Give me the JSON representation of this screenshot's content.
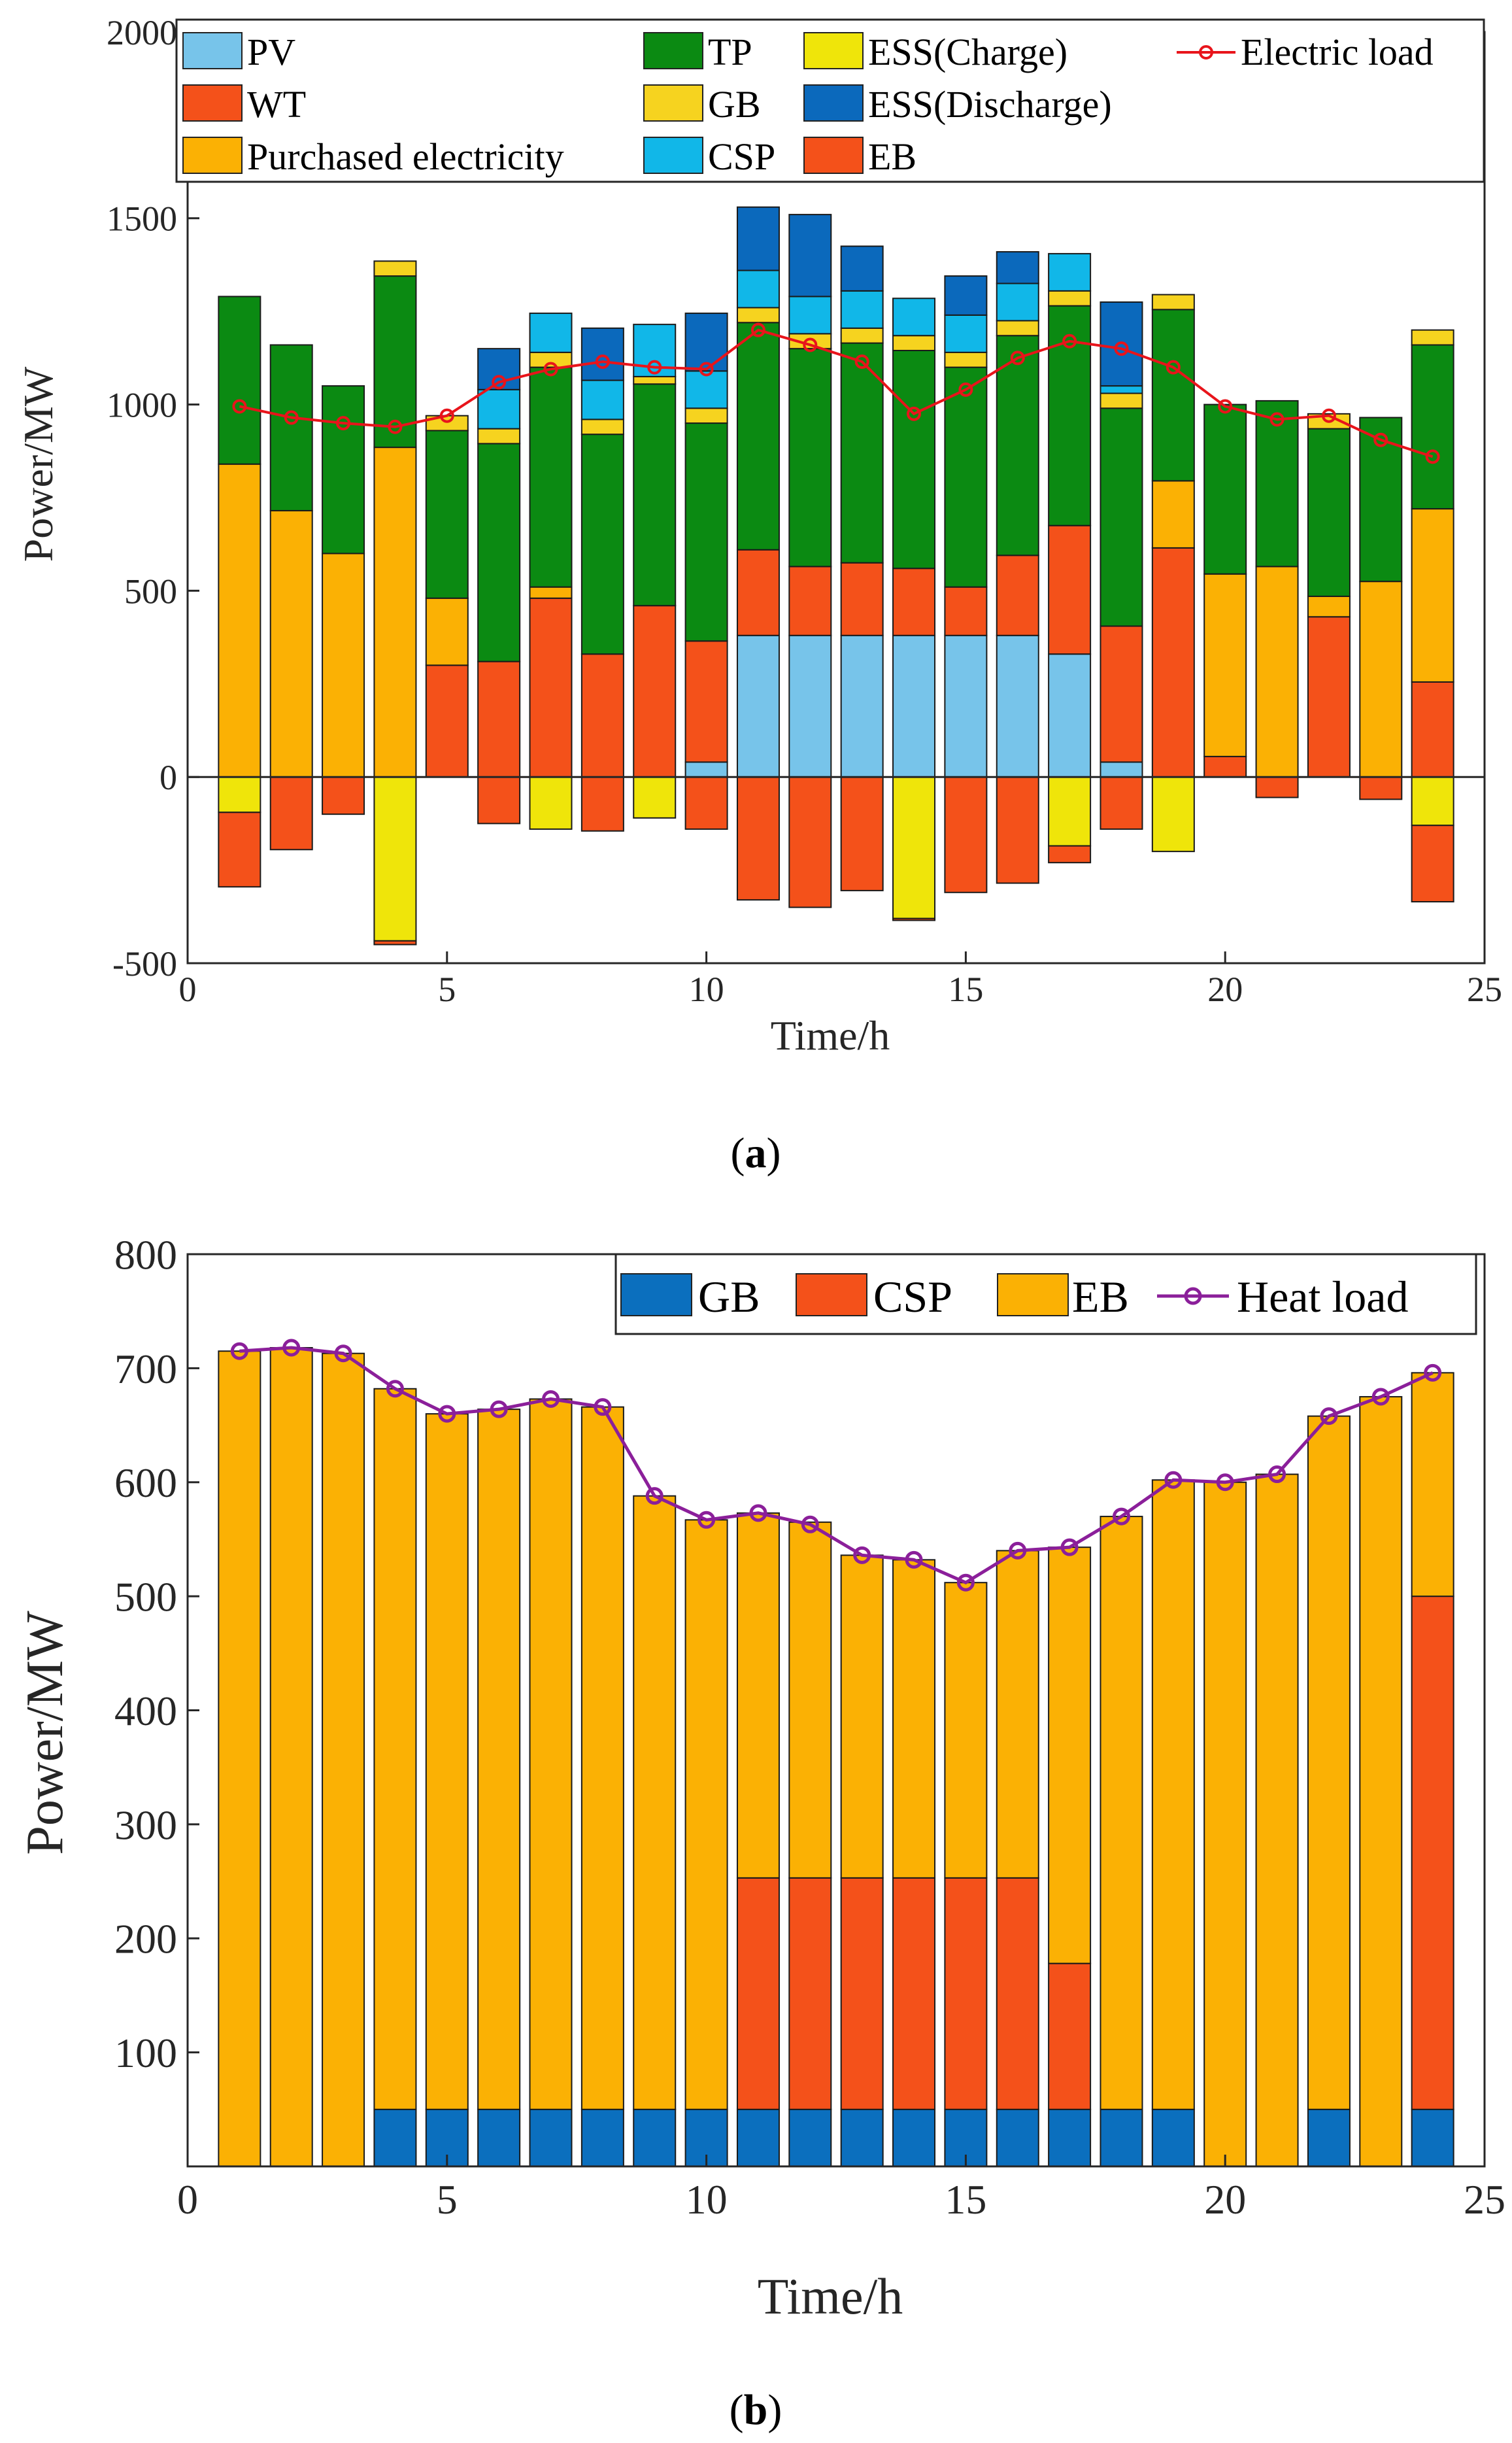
{
  "colors": {
    "PV": "#77c4ea",
    "WT": "#f4511a",
    "Purchased electricity": "#fbb104",
    "TP": "#0b8a12",
    "GB": "#f6d31f",
    "CSP": "#11b7e8",
    "ESS(Charge)": "#efe50a",
    "ESS(Discharge)": "#0b69bc",
    "EB": "#f4511a",
    "Electric load": "#e8141b",
    "GB_b": "#0b6fbe",
    "CSP_b": "#f4511a",
    "EB_b": "#fbb104",
    "Heat load": "#8b1f9a"
  },
  "chart_data": [
    {
      "type": "bar",
      "stacked": true,
      "title": "",
      "caption": "a",
      "xlabel": "Time/h",
      "ylabel": "Power/MW",
      "xlim": [
        0,
        25
      ],
      "ylim": [
        -500,
        2000
      ],
      "xticks": [
        0,
        5,
        10,
        15,
        20,
        25
      ],
      "yticks": [
        -500,
        0,
        500,
        1000,
        1500,
        2000
      ],
      "x": [
        1,
        2,
        3,
        4,
        5,
        6,
        7,
        8,
        9,
        10,
        11,
        12,
        13,
        14,
        15,
        16,
        17,
        18,
        19,
        20,
        21,
        22,
        23,
        24
      ],
      "legend": {
        "placement": "top",
        "entries": [
          "PV",
          "WT",
          "Purchased electricity",
          "TP",
          "GB",
          "CSP",
          "ESS(Charge)",
          "ESS(Discharge)",
          "EB",
          "Electric load"
        ]
      },
      "series": [
        {
          "name": "PV",
          "values": [
            0,
            0,
            0,
            0,
            0,
            0,
            0,
            0,
            0,
            40,
            380,
            380,
            380,
            380,
            380,
            380,
            330,
            40,
            0,
            0,
            0,
            0,
            0,
            0
          ]
        },
        {
          "name": "WT",
          "values": [
            0,
            0,
            0,
            0,
            300,
            310,
            480,
            330,
            460,
            325,
            230,
            185,
            195,
            180,
            130,
            215,
            345,
            365,
            615,
            55,
            0,
            430,
            0,
            255
          ]
        },
        {
          "name": "Purchased electricity",
          "values": [
            840,
            715,
            600,
            885,
            180,
            0,
            30,
            0,
            0,
            0,
            0,
            0,
            0,
            0,
            0,
            0,
            0,
            0,
            180,
            490,
            565,
            55,
            525,
            465
          ]
        },
        {
          "name": "TP",
          "values": [
            450,
            445,
            450,
            460,
            450,
            585,
            590,
            590,
            595,
            585,
            610,
            585,
            590,
            585,
            590,
            590,
            590,
            585,
            460,
            455,
            445,
            450,
            440,
            440
          ]
        },
        {
          "name": "GB",
          "values": [
            0,
            0,
            0,
            40,
            40,
            40,
            40,
            40,
            20,
            40,
            40,
            40,
            40,
            40,
            40,
            40,
            40,
            40,
            40,
            0,
            0,
            40,
            0,
            40
          ]
        },
        {
          "name": "CSP",
          "values": [
            0,
            0,
            0,
            0,
            0,
            105,
            105,
            105,
            140,
            100,
            100,
            100,
            100,
            100,
            100,
            100,
            100,
            20,
            0,
            0,
            0,
            0,
            0,
            0
          ]
        },
        {
          "name": "ESS(Discharge)",
          "values": [
            0,
            0,
            0,
            0,
            0,
            110,
            0,
            140,
            0,
            155,
            170,
            220,
            120,
            0,
            105,
            85,
            0,
            225,
            0,
            0,
            0,
            0,
            0,
            0
          ]
        },
        {
          "name": "ESS(Charge)",
          "values": [
            -95,
            0,
            0,
            -440,
            0,
            0,
            -140,
            0,
            -110,
            0,
            0,
            0,
            0,
            -380,
            0,
            0,
            -185,
            0,
            -200,
            0,
            0,
            0,
            0,
            -130
          ]
        },
        {
          "name": "EB",
          "values": [
            -200,
            -195,
            -100,
            -10,
            0,
            -125,
            0,
            -145,
            0,
            -140,
            -330,
            -350,
            -305,
            -5,
            -310,
            -285,
            -45,
            -140,
            0,
            0,
            -55,
            0,
            -60,
            -205
          ]
        }
      ],
      "line_series": {
        "name": "Electric load",
        "values": [
          995,
          965,
          950,
          940,
          970,
          1060,
          1095,
          1115,
          1100,
          1095,
          1200,
          1160,
          1115,
          975,
          1040,
          1125,
          1170,
          1150,
          1100,
          995,
          960,
          970,
          905,
          860
        ]
      }
    },
    {
      "type": "bar",
      "stacked": true,
      "title": "",
      "caption": "b",
      "xlabel": "Time/h",
      "ylabel": "Power/MW",
      "xlim": [
        0,
        25
      ],
      "ylim": [
        0,
        800
      ],
      "xticks": [
        0,
        5,
        10,
        15,
        20,
        25
      ],
      "yticks": [
        100,
        200,
        300,
        400,
        500,
        600,
        700,
        800
      ],
      "x": [
        1,
        2,
        3,
        4,
        5,
        6,
        7,
        8,
        9,
        10,
        11,
        12,
        13,
        14,
        15,
        16,
        17,
        18,
        19,
        20,
        21,
        22,
        23,
        24
      ],
      "legend": {
        "placement": "top-right",
        "entries": [
          "GB",
          "CSP",
          "EB",
          "Heat load"
        ]
      },
      "series": [
        {
          "name": "GB",
          "values": [
            0,
            0,
            0,
            50,
            50,
            50,
            50,
            50,
            50,
            50,
            50,
            50,
            50,
            50,
            50,
            50,
            50,
            50,
            50,
            0,
            0,
            50,
            0,
            50
          ]
        },
        {
          "name": "CSP",
          "values": [
            0,
            0,
            0,
            0,
            0,
            0,
            0,
            0,
            0,
            0,
            203,
            203,
            203,
            203,
            203,
            203,
            128,
            0,
            0,
            0,
            0,
            0,
            0,
            450
          ]
        },
        {
          "name": "EB",
          "values": [
            715,
            718,
            713,
            632,
            610,
            614,
            623,
            616,
            538,
            517,
            320,
            312,
            283,
            279,
            259,
            287,
            365,
            520,
            552,
            600,
            607,
            608,
            675,
            196
          ]
        }
      ],
      "line_series": {
        "name": "Heat load",
        "values": [
          715,
          718,
          713,
          682,
          660,
          664,
          673,
          666,
          588,
          567,
          573,
          563,
          536,
          532,
          512,
          540,
          543,
          570,
          602,
          600,
          607,
          658,
          675,
          696
        ]
      }
    }
  ]
}
